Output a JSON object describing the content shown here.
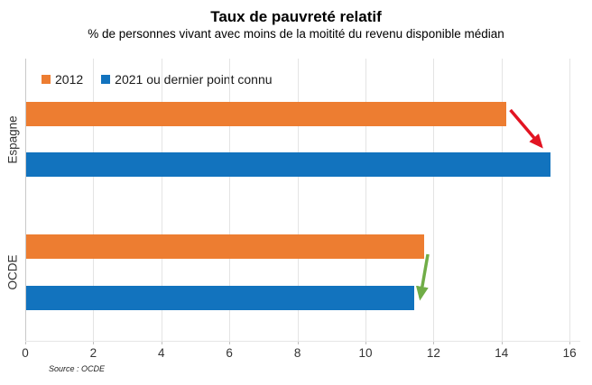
{
  "chart_data": {
    "type": "bar",
    "orientation": "horizontal",
    "title": "Taux de pauvreté relatif",
    "subtitle": "% de personnes vivant avec moins de la moitité du revenu disponible médian",
    "source": "Source : OCDE",
    "categories": [
      "Espagne",
      "OCDE"
    ],
    "series": [
      {
        "name": "2012",
        "color": "#ED7D31",
        "values": [
          14.1,
          11.7
        ]
      },
      {
        "name": "2021 ou dernier point connu",
        "color": "#1273BE",
        "values": [
          15.4,
          11.4
        ]
      }
    ],
    "xlim": [
      0,
      16
    ],
    "xticks": [
      0,
      2,
      4,
      6,
      8,
      10,
      12,
      14,
      16
    ],
    "grid": "vertical",
    "legend_position": "top-left-inside",
    "annotations": [
      {
        "type": "arrow",
        "category": "Espagne",
        "from_value": 14.1,
        "to_value": 15.4,
        "direction": "down-right",
        "color": "#E21422"
      },
      {
        "type": "arrow",
        "category": "OCDE",
        "from_value": 11.7,
        "to_value": 11.4,
        "direction": "down",
        "color": "#70AD47"
      }
    ],
    "colors": {
      "gridline": "#E4E4E4",
      "axis": "#C9C9C9",
      "text": "#333333"
    }
  }
}
